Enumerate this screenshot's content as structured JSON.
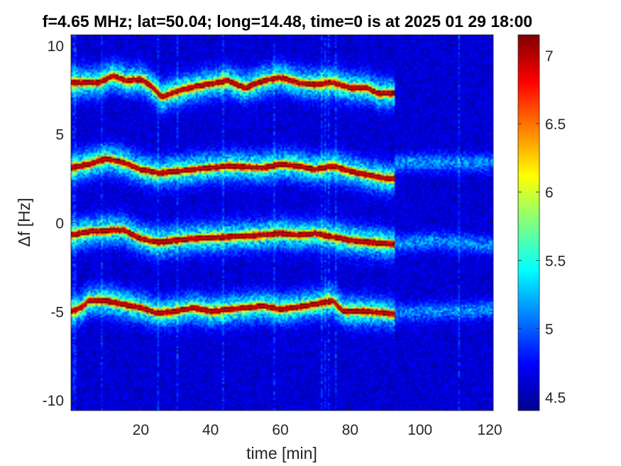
{
  "chart_data": {
    "type": "heatmap",
    "title": "f=4.65 MHz;  lat=50.04; long=14.48, time=0 is at 2025 01 29 18:00",
    "xlabel": "time [min]",
    "ylabel": "Δf [Hz]",
    "xlim": [
      0,
      121
    ],
    "ylim": [
      -10.6,
      10.6
    ],
    "xticks": [
      20,
      40,
      60,
      80,
      100,
      120
    ],
    "yticks": [
      10,
      5,
      0,
      -5,
      -10
    ],
    "colorbar": {
      "min": 4.4,
      "max": 7.15,
      "ticks": [
        7,
        6.5,
        6,
        5.5,
        5,
        4.5
      ],
      "colormap": "jet"
    },
    "background_level": 4.5,
    "signal_end_min": 93,
    "traces": [
      {
        "mode": 1,
        "points": [
          [
            0,
            7.9
          ],
          [
            8,
            7.9
          ],
          [
            12,
            8.3
          ],
          [
            16,
            8.0
          ],
          [
            20,
            8.1
          ],
          [
            23,
            7.7
          ],
          [
            26,
            7.1
          ],
          [
            30,
            7.4
          ],
          [
            36,
            7.7
          ],
          [
            45,
            8.0
          ],
          [
            50,
            7.6
          ],
          [
            55,
            8.0
          ],
          [
            60,
            8.2
          ],
          [
            65,
            7.9
          ],
          [
            70,
            7.8
          ],
          [
            75,
            7.9
          ],
          [
            80,
            7.6
          ],
          [
            85,
            7.6
          ],
          [
            88,
            7.3
          ],
          [
            92,
            7.3
          ]
        ]
      },
      {
        "mode": 2,
        "points": [
          [
            0,
            3.1
          ],
          [
            5,
            3.3
          ],
          [
            10,
            3.6
          ],
          [
            15,
            3.4
          ],
          [
            20,
            3.0
          ],
          [
            25,
            2.8
          ],
          [
            30,
            2.9
          ],
          [
            35,
            3.0
          ],
          [
            45,
            3.2
          ],
          [
            55,
            3.1
          ],
          [
            60,
            3.3
          ],
          [
            65,
            3.2
          ],
          [
            70,
            3.0
          ],
          [
            75,
            3.2
          ],
          [
            80,
            2.9
          ],
          [
            85,
            2.7
          ],
          [
            90,
            2.5
          ],
          [
            93,
            2.5
          ]
        ]
      },
      {
        "mode": 3,
        "points": [
          [
            0,
            -0.7
          ],
          [
            5,
            -0.5
          ],
          [
            15,
            -0.4
          ],
          [
            20,
            -0.9
          ],
          [
            25,
            -1.1
          ],
          [
            30,
            -1.0
          ],
          [
            35,
            -0.9
          ],
          [
            45,
            -0.8
          ],
          [
            55,
            -0.7
          ],
          [
            60,
            -0.6
          ],
          [
            65,
            -0.7
          ],
          [
            70,
            -0.6
          ],
          [
            75,
            -0.8
          ],
          [
            80,
            -1.0
          ],
          [
            85,
            -1.1
          ],
          [
            92,
            -1.2
          ]
        ]
      },
      {
        "mode": 4,
        "points": [
          [
            0,
            -5.0
          ],
          [
            3,
            -4.8
          ],
          [
            5,
            -4.4
          ],
          [
            10,
            -4.4
          ],
          [
            15,
            -4.6
          ],
          [
            20,
            -4.8
          ],
          [
            25,
            -5.1
          ],
          [
            30,
            -5.0
          ],
          [
            35,
            -4.8
          ],
          [
            40,
            -5.0
          ],
          [
            45,
            -4.9
          ],
          [
            50,
            -4.8
          ],
          [
            55,
            -4.7
          ],
          [
            60,
            -4.9
          ],
          [
            70,
            -4.6
          ],
          [
            75,
            -4.4
          ],
          [
            78,
            -5.0
          ],
          [
            85,
            -5.0
          ],
          [
            90,
            -5.1
          ],
          [
            93,
            -5.2
          ]
        ]
      }
    ],
    "faint_tail": [
      {
        "mode": 2,
        "points": [
          [
            93,
            3.4
          ],
          [
            121,
            3.4
          ]
        ]
      },
      {
        "mode": 3,
        "points": [
          [
            93,
            -1.2
          ],
          [
            105,
            -1.0
          ],
          [
            121,
            -1.3
          ]
        ]
      },
      {
        "mode": 4,
        "points": [
          [
            93,
            -5.1
          ],
          [
            105,
            -5.0
          ],
          [
            121,
            -4.9
          ]
        ]
      }
    ]
  }
}
